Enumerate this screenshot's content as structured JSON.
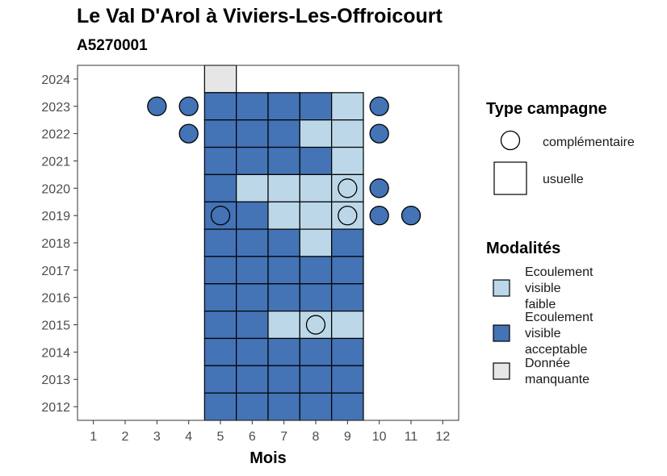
{
  "chart_data": {
    "type": "heatmap",
    "title": "Le Val D'Arol à Viviers-Les-Offroicourt",
    "subtitle": "A5270001",
    "xlabel": "Mois",
    "ylabel": "",
    "x_ticks": [
      1,
      2,
      3,
      4,
      5,
      6,
      7,
      8,
      9,
      10,
      11,
      12
    ],
    "y_ticks": [
      2012,
      2013,
      2014,
      2015,
      2016,
      2017,
      2018,
      2019,
      2020,
      2021,
      2022,
      2023,
      2024
    ],
    "xlim": [
      0.5,
      12.5
    ],
    "ylim": [
      2011.5,
      2024.5
    ],
    "grid": false,
    "colors": {
      "Ecoulement visible faible": "#bcd8e8",
      "Ecoulement visible acceptable": "#4473b6",
      "Donnée manquante": "#e6e6e6"
    },
    "usuelle": [
      {
        "year": 2024,
        "month": 5,
        "modalite": "Donnée manquante"
      },
      {
        "year": 2023,
        "month": 5,
        "modalite": "Ecoulement visible acceptable"
      },
      {
        "year": 2023,
        "month": 6,
        "modalite": "Ecoulement visible acceptable"
      },
      {
        "year": 2023,
        "month": 7,
        "modalite": "Ecoulement visible acceptable"
      },
      {
        "year": 2023,
        "month": 8,
        "modalite": "Ecoulement visible acceptable"
      },
      {
        "year": 2023,
        "month": 9,
        "modalite": "Ecoulement visible faible"
      },
      {
        "year": 2022,
        "month": 5,
        "modalite": "Ecoulement visible acceptable"
      },
      {
        "year": 2022,
        "month": 6,
        "modalite": "Ecoulement visible acceptable"
      },
      {
        "year": 2022,
        "month": 7,
        "modalite": "Ecoulement visible acceptable"
      },
      {
        "year": 2022,
        "month": 8,
        "modalite": "Ecoulement visible faible"
      },
      {
        "year": 2022,
        "month": 9,
        "modalite": "Ecoulement visible faible"
      },
      {
        "year": 2021,
        "month": 5,
        "modalite": "Ecoulement visible acceptable"
      },
      {
        "year": 2021,
        "month": 6,
        "modalite": "Ecoulement visible acceptable"
      },
      {
        "year": 2021,
        "month": 7,
        "modalite": "Ecoulement visible acceptable"
      },
      {
        "year": 2021,
        "month": 8,
        "modalite": "Ecoulement visible acceptable"
      },
      {
        "year": 2021,
        "month": 9,
        "modalite": "Ecoulement visible faible"
      },
      {
        "year": 2020,
        "month": 5,
        "modalite": "Ecoulement visible acceptable"
      },
      {
        "year": 2020,
        "month": 6,
        "modalite": "Ecoulement visible faible"
      },
      {
        "year": 2020,
        "month": 7,
        "modalite": "Ecoulement visible faible"
      },
      {
        "year": 2020,
        "month": 8,
        "modalite": "Ecoulement visible faible"
      },
      {
        "year": 2020,
        "month": 9,
        "modalite": "Ecoulement visible faible"
      },
      {
        "year": 2019,
        "month": 5,
        "modalite": "Ecoulement visible acceptable"
      },
      {
        "year": 2019,
        "month": 6,
        "modalite": "Ecoulement visible acceptable"
      },
      {
        "year": 2019,
        "month": 7,
        "modalite": "Ecoulement visible faible"
      },
      {
        "year": 2019,
        "month": 8,
        "modalite": "Ecoulement visible faible"
      },
      {
        "year": 2019,
        "month": 9,
        "modalite": "Ecoulement visible faible"
      },
      {
        "year": 2018,
        "month": 5,
        "modalite": "Ecoulement visible acceptable"
      },
      {
        "year": 2018,
        "month": 6,
        "modalite": "Ecoulement visible acceptable"
      },
      {
        "year": 2018,
        "month": 7,
        "modalite": "Ecoulement visible acceptable"
      },
      {
        "year": 2018,
        "month": 8,
        "modalite": "Ecoulement visible faible"
      },
      {
        "year": 2018,
        "month": 9,
        "modalite": "Ecoulement visible acceptable"
      },
      {
        "year": 2017,
        "month": 5,
        "modalite": "Ecoulement visible acceptable"
      },
      {
        "year": 2017,
        "month": 6,
        "modalite": "Ecoulement visible acceptable"
      },
      {
        "year": 2017,
        "month": 7,
        "modalite": "Ecoulement visible acceptable"
      },
      {
        "year": 2017,
        "month": 8,
        "modalite": "Ecoulement visible acceptable"
      },
      {
        "year": 2017,
        "month": 9,
        "modalite": "Ecoulement visible acceptable"
      },
      {
        "year": 2016,
        "month": 5,
        "modalite": "Ecoulement visible acceptable"
      },
      {
        "year": 2016,
        "month": 6,
        "modalite": "Ecoulement visible acceptable"
      },
      {
        "year": 2016,
        "month": 7,
        "modalite": "Ecoulement visible acceptable"
      },
      {
        "year": 2016,
        "month": 8,
        "modalite": "Ecoulement visible acceptable"
      },
      {
        "year": 2016,
        "month": 9,
        "modalite": "Ecoulement visible acceptable"
      },
      {
        "year": 2015,
        "month": 5,
        "modalite": "Ecoulement visible acceptable"
      },
      {
        "year": 2015,
        "month": 6,
        "modalite": "Ecoulement visible acceptable"
      },
      {
        "year": 2015,
        "month": 7,
        "modalite": "Ecoulement visible faible"
      },
      {
        "year": 2015,
        "month": 8,
        "modalite": "Ecoulement visible faible"
      },
      {
        "year": 2015,
        "month": 9,
        "modalite": "Ecoulement visible faible"
      },
      {
        "year": 2014,
        "month": 5,
        "modalite": "Ecoulement visible acceptable"
      },
      {
        "year": 2014,
        "month": 6,
        "modalite": "Ecoulement visible acceptable"
      },
      {
        "year": 2014,
        "month": 7,
        "modalite": "Ecoulement visible acceptable"
      },
      {
        "year": 2014,
        "month": 8,
        "modalite": "Ecoulement visible acceptable"
      },
      {
        "year": 2014,
        "month": 9,
        "modalite": "Ecoulement visible acceptable"
      },
      {
        "year": 2013,
        "month": 5,
        "modalite": "Ecoulement visible acceptable"
      },
      {
        "year": 2013,
        "month": 6,
        "modalite": "Ecoulement visible acceptable"
      },
      {
        "year": 2013,
        "month": 7,
        "modalite": "Ecoulement visible acceptable"
      },
      {
        "year": 2013,
        "month": 8,
        "modalite": "Ecoulement visible acceptable"
      },
      {
        "year": 2013,
        "month": 9,
        "modalite": "Ecoulement visible acceptable"
      },
      {
        "year": 2012,
        "month": 5,
        "modalite": "Ecoulement visible acceptable"
      },
      {
        "year": 2012,
        "month": 6,
        "modalite": "Ecoulement visible acceptable"
      },
      {
        "year": 2012,
        "month": 7,
        "modalite": "Ecoulement visible acceptable"
      },
      {
        "year": 2012,
        "month": 8,
        "modalite": "Ecoulement visible acceptable"
      },
      {
        "year": 2012,
        "month": 9,
        "modalite": "Ecoulement visible acceptable"
      }
    ],
    "complementaire": [
      {
        "year": 2023,
        "month": 3,
        "modalite": "Ecoulement visible acceptable"
      },
      {
        "year": 2023,
        "month": 4,
        "modalite": "Ecoulement visible acceptable"
      },
      {
        "year": 2023,
        "month": 10,
        "modalite": "Ecoulement visible acceptable"
      },
      {
        "year": 2022,
        "month": 4,
        "modalite": "Ecoulement visible acceptable"
      },
      {
        "year": 2022,
        "month": 10,
        "modalite": "Ecoulement visible acceptable"
      },
      {
        "year": 2020,
        "month": 9,
        "modalite": "Ecoulement visible faible"
      },
      {
        "year": 2020,
        "month": 10,
        "modalite": "Ecoulement visible acceptable"
      },
      {
        "year": 2019,
        "month": 5,
        "modalite": "Ecoulement visible acceptable"
      },
      {
        "year": 2019,
        "month": 9,
        "modalite": "Ecoulement visible faible"
      },
      {
        "year": 2019,
        "month": 10,
        "modalite": "Ecoulement visible acceptable"
      },
      {
        "year": 2019,
        "month": 11,
        "modalite": "Ecoulement visible acceptable"
      },
      {
        "year": 2015,
        "month": 8,
        "modalite": "Ecoulement visible faible"
      }
    ],
    "legend": {
      "placement": "right",
      "type_title": "Type campagne",
      "type_entries": [
        "complémentaire",
        "usuelle"
      ],
      "modalite_title": "Modalités",
      "modalite_entries": [
        {
          "lines": [
            "Ecoulement",
            "visible",
            "faible"
          ],
          "color": "#bcd8e8"
        },
        {
          "lines": [
            "Ecoulement",
            "visible",
            "acceptable"
          ],
          "color": "#4473b6"
        },
        {
          "lines": [
            "Donnée",
            "manquante"
          ],
          "color": "#e6e6e6"
        }
      ]
    }
  }
}
